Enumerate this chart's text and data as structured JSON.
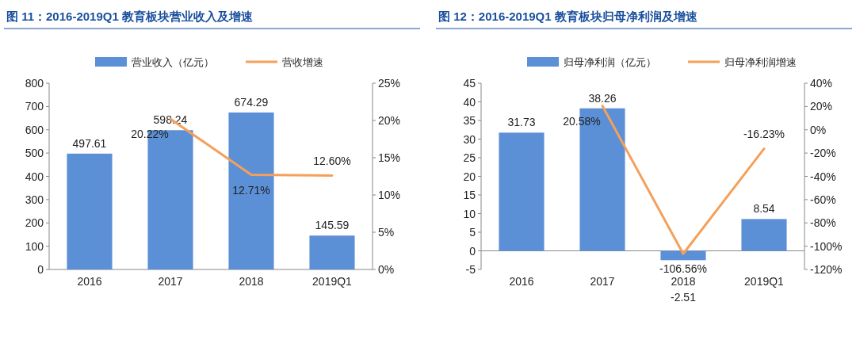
{
  "chart_data": [
    {
      "type": "bar",
      "title": "图 11：2016-2019Q1 教育板块营业收入及增速",
      "categories": [
        "2016",
        "2017",
        "2018",
        "2019Q1"
      ],
      "legend": "top",
      "series": [
        {
          "name": "营业收入（亿元）",
          "color": "#5b8fd6",
          "values": [
            497.61,
            598.24,
            674.29,
            145.59
          ],
          "value_labels": [
            "497.61",
            "598.24",
            "674.29",
            "145.59"
          ]
        },
        {
          "name": "营收增速",
          "type": "line",
          "axis": "y2",
          "color": "#f5a05a",
          "values": [
            null,
            20.22,
            12.71,
            12.6
          ],
          "value_labels": [
            null,
            "20.22%",
            "12.71%",
            "12.60%"
          ]
        }
      ],
      "ylim": [
        0,
        800
      ],
      "yticks": [
        0,
        100,
        200,
        300,
        400,
        500,
        600,
        700,
        800
      ],
      "y2lim": [
        0,
        25
      ],
      "y2ticks": [
        {
          "value": 0,
          "label": "0%"
        },
        {
          "value": 5,
          "label": "5%"
        },
        {
          "value": 10,
          "label": "10%"
        },
        {
          "value": 15,
          "label": "15%"
        },
        {
          "value": 20,
          "label": "20%"
        },
        {
          "value": 25,
          "label": "25%"
        }
      ]
    },
    {
      "type": "bar",
      "title": "图 12：2016-2019Q1 教育板块归母净利润及增速",
      "categories": [
        "2016",
        "2017",
        "2018",
        "2019Q1"
      ],
      "legend": "top",
      "series": [
        {
          "name": "归母净利润（亿元）",
          "color": "#5b8fd6",
          "values": [
            31.73,
            38.26,
            -2.51,
            8.54
          ],
          "value_labels": [
            "31.73",
            "38.26",
            "-2.51",
            "8.54"
          ]
        },
        {
          "name": "归母净利润增速",
          "type": "line",
          "axis": "y2",
          "color": "#f5a05a",
          "values": [
            null,
            20.58,
            -106.56,
            -16.23
          ],
          "value_labels": [
            null,
            "20.58%",
            "-106.56%",
            "-16.23%"
          ]
        }
      ],
      "ylim": [
        -5,
        45
      ],
      "yticks": [
        -5,
        0,
        5,
        10,
        15,
        20,
        25,
        30,
        35,
        40,
        45
      ],
      "y2lim": [
        -120,
        40
      ],
      "y2ticks": [
        {
          "value": -120,
          "label": "-120%"
        },
        {
          "value": -100,
          "label": "-100%"
        },
        {
          "value": -80,
          "label": "-80%"
        },
        {
          "value": -60,
          "label": "-60%"
        },
        {
          "value": -40,
          "label": "-40%"
        },
        {
          "value": -20,
          "label": "-20%"
        },
        {
          "value": 0,
          "label": "0%"
        },
        {
          "value": 20,
          "label": "20%"
        },
        {
          "value": 40,
          "label": "40%"
        }
      ]
    }
  ]
}
